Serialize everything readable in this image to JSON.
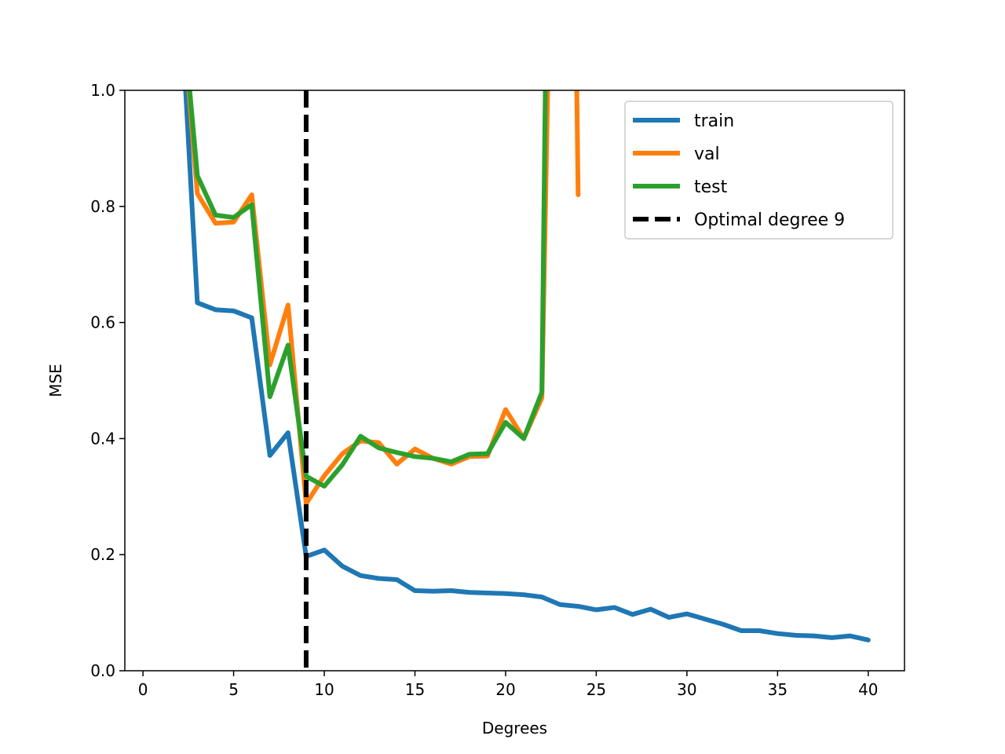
{
  "chart_data": {
    "type": "line",
    "xlabel": "Degrees",
    "ylabel": "MSE",
    "xlim": [
      -1,
      42
    ],
    "ylim": [
      0,
      1
    ],
    "xticks": [
      0,
      5,
      10,
      15,
      20,
      25,
      30,
      35,
      40
    ],
    "xtick_labels": [
      "0",
      "5",
      "10",
      "15",
      "20",
      "25",
      "30",
      "35",
      "40"
    ],
    "yticks": [
      0,
      0.2,
      0.4,
      0.6,
      0.8,
      1.0
    ],
    "ytick_labels": [
      "0.0",
      "0.2",
      "0.4",
      "0.6",
      "0.8",
      "1.0"
    ],
    "grid": false,
    "legend_position": "top-right",
    "series": [
      {
        "name": "train",
        "color": "#1f77b4",
        "x": [
          2,
          3,
          4,
          5,
          6,
          7,
          8,
          9,
          10,
          11,
          12,
          13,
          14,
          15,
          16,
          17,
          18,
          19,
          20,
          21,
          22,
          23,
          24,
          25,
          26,
          27,
          28,
          29,
          30,
          31,
          32,
          33,
          34,
          35,
          36,
          37,
          38,
          39,
          40
        ],
        "y": [
          1.2,
          0.634,
          0.622,
          0.62,
          0.608,
          0.371,
          0.41,
          0.197,
          0.208,
          0.18,
          0.164,
          0.159,
          0.157,
          0.138,
          0.137,
          0.138,
          0.135,
          0.134,
          0.133,
          0.131,
          0.127,
          0.114,
          0.111,
          0.105,
          0.109,
          0.097,
          0.106,
          0.092,
          0.098,
          0.089,
          0.08,
          0.069,
          0.069,
          0.064,
          0.061,
          0.06,
          0.057,
          0.06,
          0.053
        ]
      },
      {
        "name": "val",
        "color": "#ff7f0e",
        "x": [
          2,
          3,
          4,
          5,
          6,
          7,
          8,
          9,
          10,
          11,
          12,
          13,
          14,
          15,
          16,
          17,
          18,
          19,
          20,
          21,
          22,
          22.5,
          23.8,
          24
        ],
        "y": [
          1.2,
          0.822,
          0.771,
          0.773,
          0.82,
          0.527,
          0.63,
          0.288,
          0.336,
          0.374,
          0.396,
          0.393,
          0.356,
          0.382,
          0.366,
          0.356,
          0.369,
          0.37,
          0.45,
          0.4,
          0.47,
          1.3,
          1.3,
          0.82
        ]
      },
      {
        "name": "test",
        "color": "#2ca02c",
        "x": [
          2,
          3,
          4,
          5,
          6,
          7,
          8,
          9,
          10,
          11,
          12,
          13,
          14,
          15,
          16,
          17,
          18,
          19,
          20,
          21,
          22,
          22.3
        ],
        "y": [
          1.2,
          0.853,
          0.785,
          0.781,
          0.803,
          0.472,
          0.561,
          0.335,
          0.318,
          0.355,
          0.404,
          0.384,
          0.376,
          0.369,
          0.366,
          0.36,
          0.373,
          0.374,
          0.428,
          0.4,
          0.48,
          1.3
        ]
      }
    ],
    "vline": {
      "name": "Optimal degree 9",
      "x": 9,
      "color": "#000000",
      "style": "dashed"
    }
  }
}
